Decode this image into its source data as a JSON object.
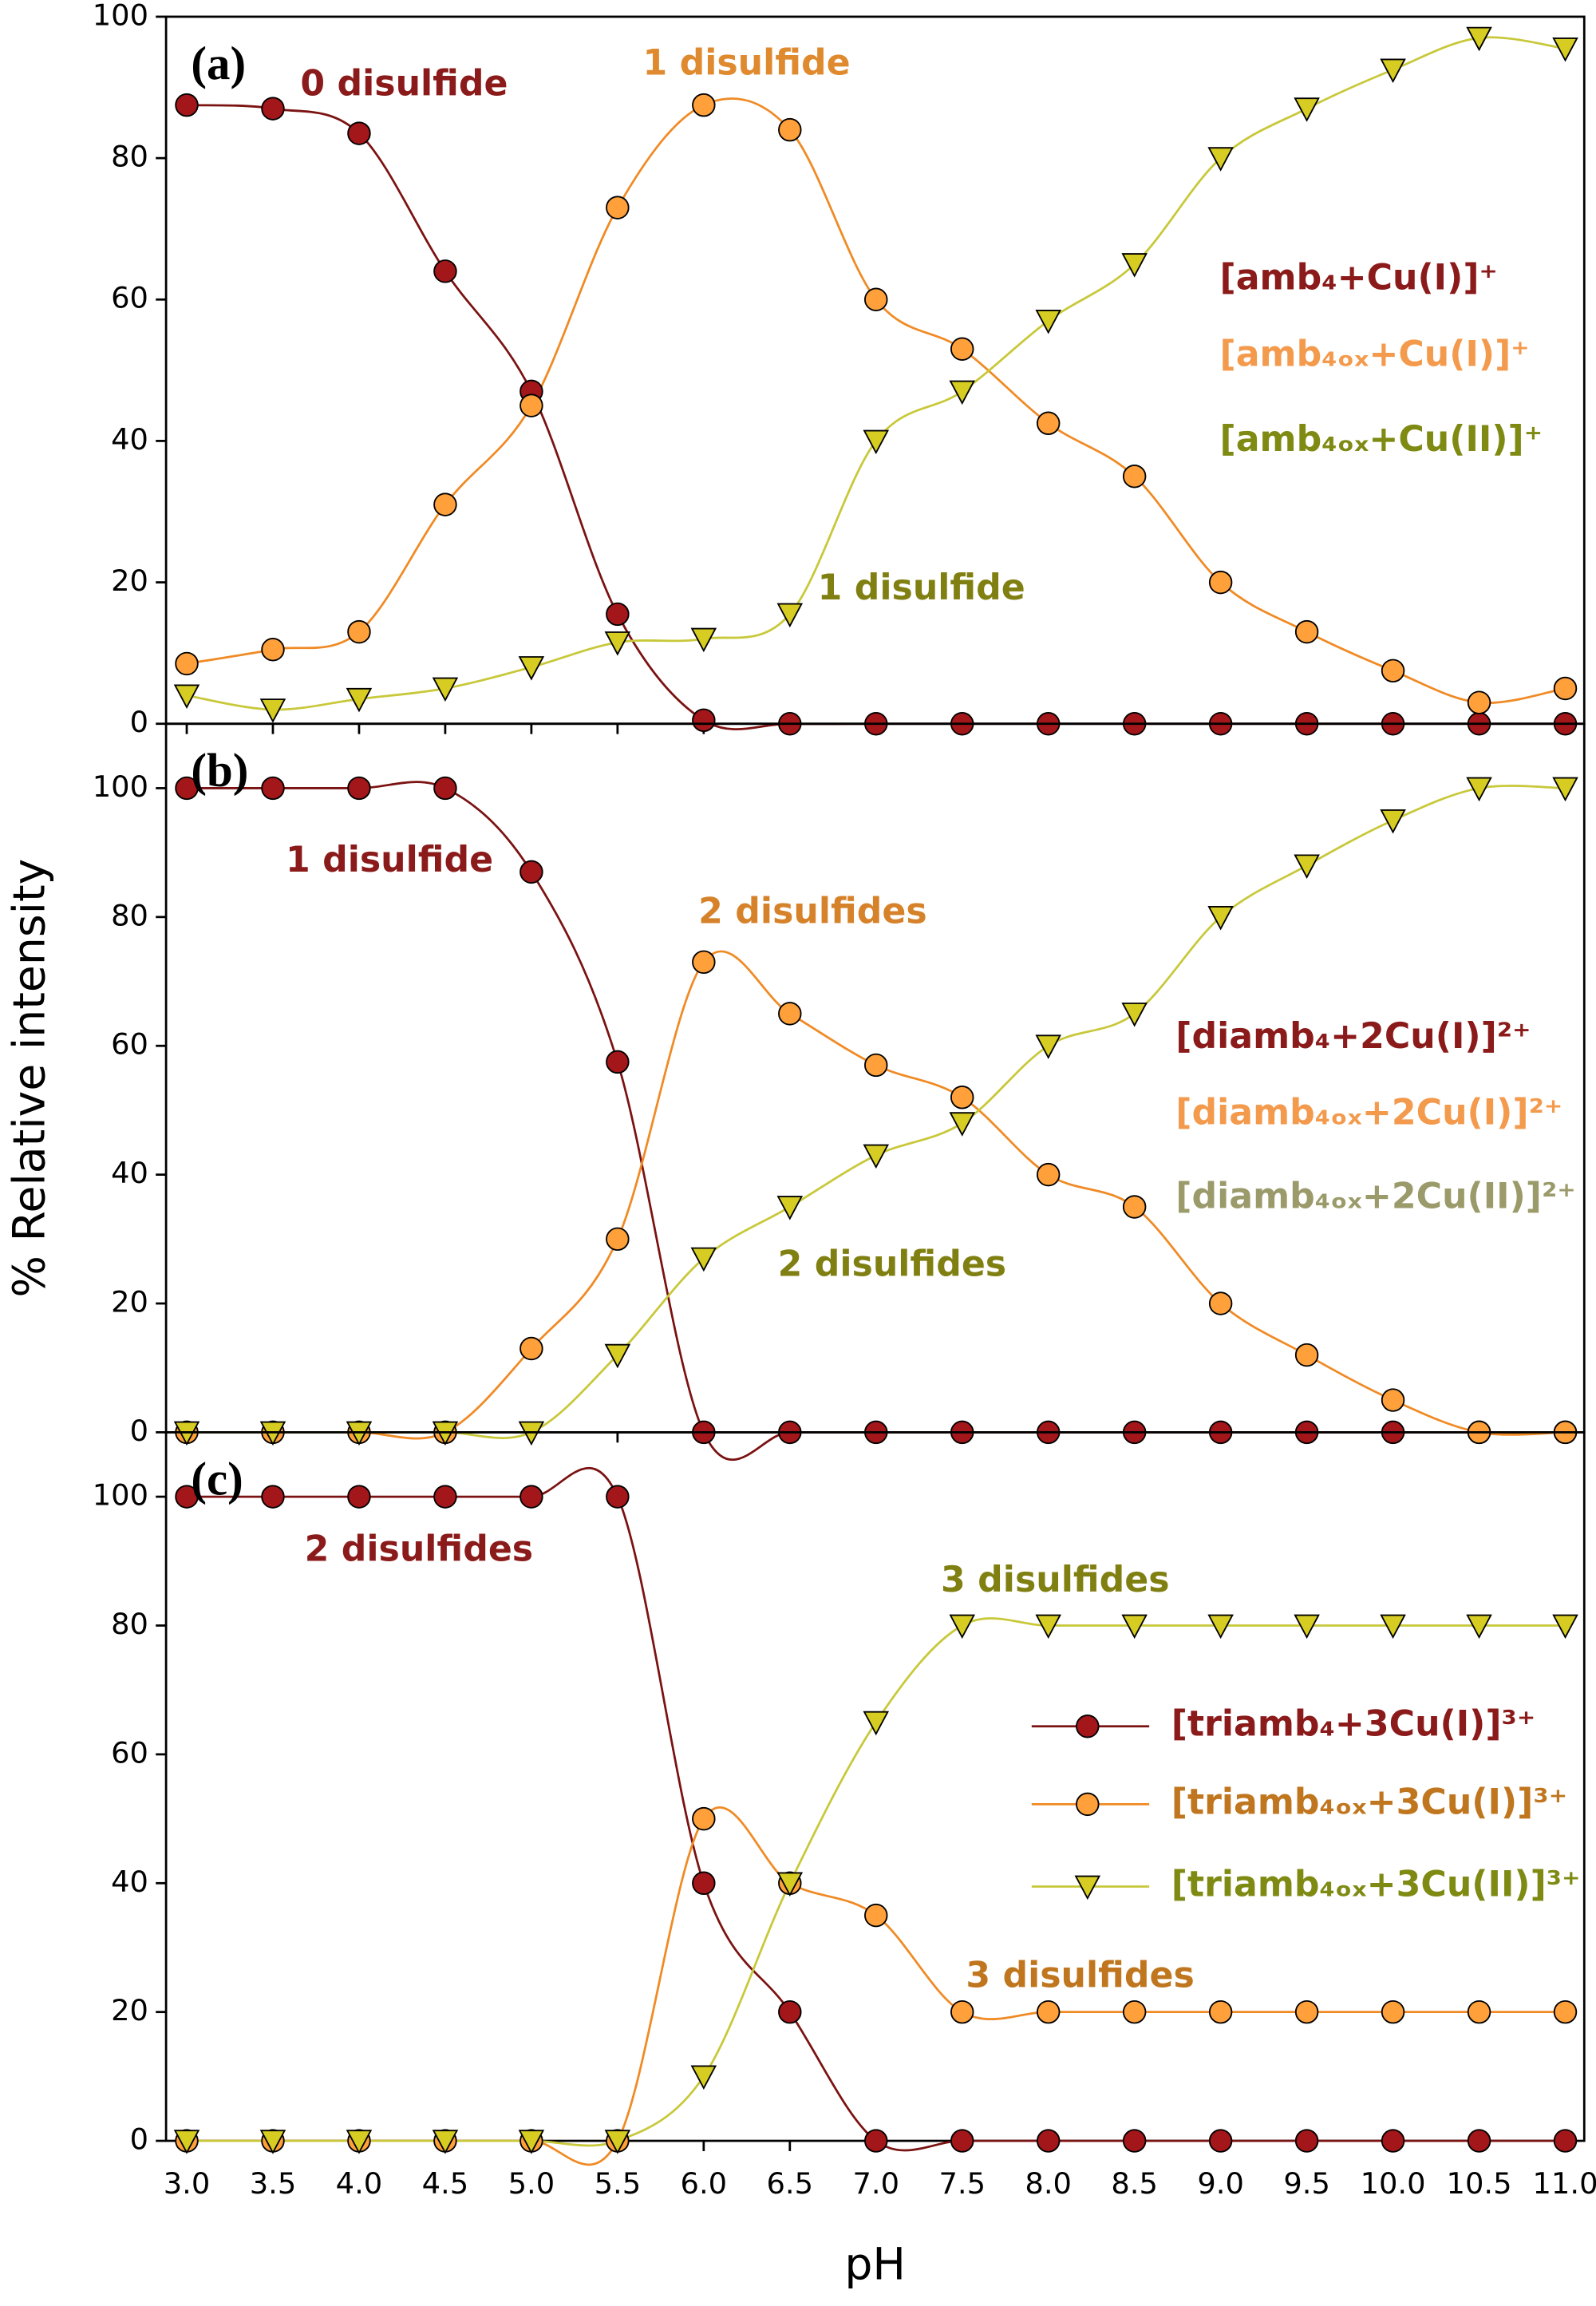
{
  "chart_data": [
    {
      "type": "line",
      "panel_label": "(a)",
      "legend": "right",
      "legend_markers": false,
      "x": [
        3.0,
        3.5,
        4.0,
        4.5,
        5.0,
        5.5,
        6.0,
        6.5,
        7.0,
        7.5,
        8.0,
        8.5,
        9.0,
        9.5,
        10.0,
        10.5,
        11.0
      ],
      "xlim": [
        2.88,
        11.11
      ],
      "ylim": [
        0,
        100
      ],
      "yticks": [
        0,
        20,
        40,
        60,
        80,
        100
      ],
      "series": [
        {
          "name": "[amb₄+Cu(I)]⁺",
          "marker": "circle",
          "color": "#7b1212",
          "fill": "#a3161a",
          "text_color": "#8b1a1a",
          "values": [
            87.5,
            87,
            83.5,
            64,
            47,
            15.5,
            0.5,
            0,
            0,
            0,
            0,
            0,
            0,
            0,
            0,
            0,
            0
          ]
        },
        {
          "name": "[amb₄ₒₓ+Cu(I)]⁺",
          "marker": "circle",
          "color": "#f08a24",
          "fill": "#ffa03a",
          "text_color": "#f39a4d",
          "values": [
            8.5,
            10.5,
            13,
            31,
            45,
            73,
            87.5,
            84,
            60,
            53,
            42.5,
            35,
            20,
            13,
            7.5,
            3,
            5
          ]
        },
        {
          "name": "[amb₄ₒₓ+Cu(II)]⁺",
          "marker": "triangle",
          "color": "#c8c83a",
          "fill": "#d6cc22",
          "text_color": "#7e8a12",
          "values": [
            4,
            2,
            3.5,
            5,
            8,
            11.5,
            12,
            15.5,
            40,
            47,
            57,
            65,
            80,
            87,
            92.5,
            97,
            95.5
          ]
        }
      ],
      "annotations": [
        {
          "text": "0 disulfide",
          "color": "#8b1a1a"
        },
        {
          "text": "1 disulfide",
          "color": "#e08a30"
        },
        {
          "text": "1 disulfide",
          "color": "#808012"
        }
      ]
    },
    {
      "type": "line",
      "panel_label": "(b)",
      "legend": "right",
      "legend_markers": false,
      "ylabel": "% Relative intensity",
      "x": [
        3.0,
        3.5,
        4.0,
        4.5,
        5.0,
        5.5,
        6.0,
        6.5,
        7.0,
        7.5,
        8.0,
        8.5,
        9.0,
        9.5,
        10.0,
        10.5,
        11.0
      ],
      "xlim": [
        2.88,
        11.11
      ],
      "ylim": [
        0,
        110
      ],
      "yticks": [
        0,
        20,
        40,
        60,
        80,
        100
      ],
      "series": [
        {
          "name": "[diamb₄+2Cu(I)]²⁺",
          "marker": "circle",
          "color": "#7b1212",
          "fill": "#a3161a",
          "text_color": "#8b1a1a",
          "values": [
            100,
            100,
            100,
            100,
            87,
            57.5,
            0,
            0,
            0,
            0,
            0,
            0,
            0,
            0,
            0,
            0,
            0
          ]
        },
        {
          "name": "[diamb₄ₒₓ+2Cu(I)]²⁺",
          "marker": "circle",
          "color": "#f08a24",
          "fill": "#ffa03a",
          "text_color": "#f39a4d",
          "values": [
            0,
            0,
            0,
            0,
            13,
            30,
            73,
            65,
            57,
            52,
            40,
            35,
            20,
            12,
            5,
            0,
            0
          ]
        },
        {
          "name": "[diamb₄ₒₓ+2Cu(II)]²⁺",
          "marker": "triangle",
          "color": "#c8c83a",
          "fill": "#d6cc22",
          "text_color": "#9a9a6a",
          "values": [
            0,
            0,
            0,
            0,
            0,
            12,
            27,
            35,
            43,
            48,
            60,
            65,
            80,
            88,
            95,
            100,
            100
          ]
        }
      ],
      "annotations": [
        {
          "text": "1 disulfide",
          "color": "#8b1a1a"
        },
        {
          "text": "2 disulfides",
          "color": "#d6822a"
        },
        {
          "text": "2 disulfides",
          "color": "#808012"
        }
      ]
    },
    {
      "type": "line",
      "panel_label": "(c)",
      "legend": "right",
      "legend_markers": true,
      "xlabel": "pH",
      "x": [
        3.0,
        3.5,
        4.0,
        4.5,
        5.0,
        5.5,
        6.0,
        6.5,
        7.0,
        7.5,
        8.0,
        8.5,
        9.0,
        9.5,
        10.0,
        10.5,
        11.0
      ],
      "xlim": [
        2.88,
        11.11
      ],
      "ylim": [
        0,
        110
      ],
      "yticks": [
        0,
        20,
        40,
        60,
        80,
        100
      ],
      "xticks": [
        {
          "value": 3.0,
          "label": "3.0"
        },
        {
          "value": 3.5,
          "label": "3.5"
        },
        {
          "value": 4.0,
          "label": "4.0"
        },
        {
          "value": 4.5,
          "label": "4.5"
        },
        {
          "value": 5.0,
          "label": "5.0"
        },
        {
          "value": 5.5,
          "label": "5.5"
        },
        {
          "value": 6.0,
          "label": "6.0"
        },
        {
          "value": 6.5,
          "label": "6.5"
        },
        {
          "value": 7.0,
          "label": "7.0"
        },
        {
          "value": 7.5,
          "label": "7.5"
        },
        {
          "value": 8.0,
          "label": "8.0"
        },
        {
          "value": 8.5,
          "label": "8.5"
        },
        {
          "value": 9.0,
          "label": "9.0"
        },
        {
          "value": 9.5,
          "label": "9.5"
        },
        {
          "value": 10.0,
          "label": "10.0"
        },
        {
          "value": 10.5,
          "label": "10.5"
        },
        {
          "value": 11.0,
          "label": "11.0"
        }
      ],
      "series": [
        {
          "name": "[triamb₄+3Cu(I)]³⁺",
          "marker": "circle",
          "color": "#7b1212",
          "fill": "#a3161a",
          "text_color": "#8b1a1a",
          "values": [
            100,
            100,
            100,
            100,
            100,
            100,
            40,
            20,
            0,
            0,
            0,
            0,
            0,
            0,
            0,
            0,
            0
          ]
        },
        {
          "name": "[triamb₄ₒₓ+3Cu(I)]³⁺",
          "marker": "circle",
          "color": "#f08a24",
          "fill": "#ffa03a",
          "text_color": "#c0761e",
          "values": [
            0,
            0,
            0,
            0,
            0,
            0,
            50,
            40,
            35,
            20,
            20,
            20,
            20,
            20,
            20,
            20,
            20
          ]
        },
        {
          "name": "[triamb₄ₒₓ+3Cu(II)]³⁺",
          "marker": "triangle",
          "color": "#c8c83a",
          "fill": "#d6cc22",
          "text_color": "#7e8a12",
          "values": [
            0,
            0,
            0,
            0,
            0,
            0,
            10,
            40,
            65,
            80,
            80,
            80,
            80,
            80,
            80,
            80,
            80
          ]
        }
      ],
      "annotations": [
        {
          "text": "2 disulfides",
          "color": "#8b1a1a"
        },
        {
          "text": "3 disulfides",
          "color": "#808012"
        },
        {
          "text": "3 disulfides",
          "color": "#c0761e"
        }
      ]
    }
  ]
}
